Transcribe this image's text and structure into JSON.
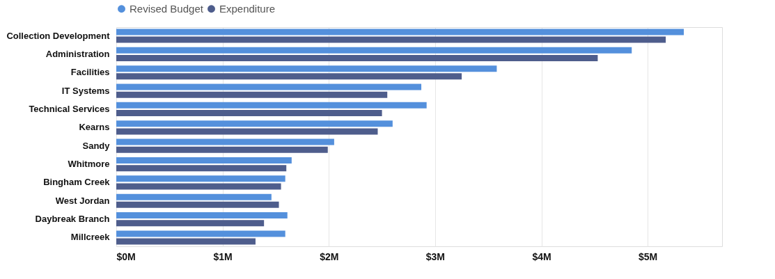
{
  "chart_data": {
    "type": "bar",
    "orientation": "horizontal",
    "categories": [
      "Collection Development",
      "Administration",
      "Facilities",
      "IT Systems",
      "Technical Services",
      "Kearns",
      "Sandy",
      "Whitmore",
      "Bingham Creek",
      "West Jordan",
      "Daybreak Branch",
      "Millcreek"
    ],
    "series": [
      {
        "name": "Revised Budget",
        "color": "#5490dc",
        "values": [
          5.34,
          4.85,
          3.58,
          2.87,
          2.92,
          2.6,
          2.05,
          1.65,
          1.59,
          1.46,
          1.61,
          1.59
        ]
      },
      {
        "name": "Expenditure",
        "color": "#4e5d8c",
        "values": [
          5.17,
          4.53,
          3.25,
          2.55,
          2.5,
          2.46,
          1.99,
          1.6,
          1.55,
          1.53,
          1.39,
          1.31
        ]
      }
    ],
    "xlim": [
      0,
      5.7
    ],
    "xticks": [
      {
        "value": 0,
        "label": "$0M"
      },
      {
        "value": 1,
        "label": "$1M"
      },
      {
        "value": 2,
        "label": "$2M"
      },
      {
        "value": 3,
        "label": "$3M"
      },
      {
        "value": 4,
        "label": "$4M"
      },
      {
        "value": 5,
        "label": "$5M"
      }
    ],
    "grid": "x",
    "legend": "top"
  }
}
